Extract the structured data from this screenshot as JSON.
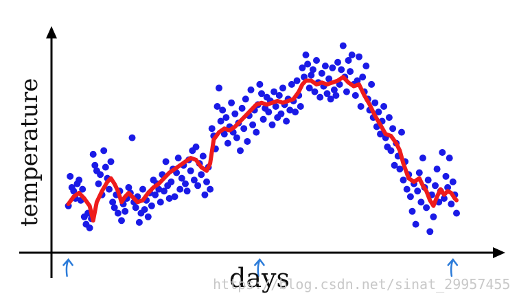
{
  "chart_data": {
    "type": "scatter",
    "xlabel": "days",
    "ylabel": "temperature",
    "xlim": [
      0,
      220
    ],
    "ylim": [
      0,
      100
    ],
    "grid": false,
    "series": [
      {
        "style": "scatter",
        "color": "#1a1ae6",
        "points": [
          [
            1,
            18
          ],
          [
            2,
            34
          ],
          [
            3,
            28
          ],
          [
            4,
            26
          ],
          [
            5,
            22
          ],
          [
            6,
            30
          ],
          [
            7,
            32
          ],
          [
            8,
            21
          ],
          [
            9,
            27
          ],
          [
            10,
            12
          ],
          [
            11,
            8
          ],
          [
            12,
            14
          ],
          [
            13,
            6
          ],
          [
            14,
            11
          ],
          [
            15,
            46
          ],
          [
            16,
            40
          ],
          [
            17,
            37
          ],
          [
            18,
            30
          ],
          [
            19,
            35
          ],
          [
            20,
            24
          ],
          [
            21,
            48
          ],
          [
            22,
            39
          ],
          [
            23,
            33
          ],
          [
            24,
            27
          ],
          [
            25,
            42
          ],
          [
            26,
            20
          ],
          [
            27,
            17
          ],
          [
            28,
            24
          ],
          [
            29,
            14
          ],
          [
            30,
            26
          ],
          [
            31,
            10
          ],
          [
            32,
            19
          ],
          [
            33,
            15
          ],
          [
            34,
            22
          ],
          [
            35,
            28
          ],
          [
            36,
            25
          ],
          [
            37,
            55
          ],
          [
            38,
            20
          ],
          [
            39,
            17
          ],
          [
            40,
            23
          ],
          [
            41,
            9
          ],
          [
            42,
            14
          ],
          [
            43,
            27
          ],
          [
            44,
            16
          ],
          [
            45,
            21
          ],
          [
            46,
            12
          ],
          [
            47,
            25
          ],
          [
            48,
            18
          ],
          [
            49,
            32
          ],
          [
            50,
            24
          ],
          [
            51,
            30
          ],
          [
            52,
            27
          ],
          [
            53,
            20
          ],
          [
            54,
            35
          ],
          [
            55,
            26
          ],
          [
            56,
            42
          ],
          [
            57,
            29
          ],
          [
            58,
            22
          ],
          [
            59,
            31
          ],
          [
            60,
            38
          ],
          [
            61,
            23
          ],
          [
            62,
            36
          ],
          [
            63,
            44
          ],
          [
            64,
            27
          ],
          [
            65,
            33
          ],
          [
            66,
            40
          ],
          [
            67,
            30
          ],
          [
            68,
            26
          ],
          [
            69,
            43
          ],
          [
            70,
            37
          ],
          [
            71,
            48
          ],
          [
            72,
            32
          ],
          [
            73,
            50
          ],
          [
            74,
            29
          ],
          [
            75,
            41
          ],
          [
            76,
            35
          ],
          [
            77,
            45
          ],
          [
            78,
            24
          ],
          [
            79,
            31
          ],
          [
            80,
            39
          ],
          [
            81,
            27
          ],
          [
            82,
            60
          ],
          [
            83,
            56
          ],
          [
            84,
            49
          ],
          [
            85,
            72
          ],
          [
            86,
            82
          ],
          [
            87,
            64
          ],
          [
            88,
            70
          ],
          [
            89,
            57
          ],
          [
            90,
            66
          ],
          [
            91,
            52
          ],
          [
            92,
            61
          ],
          [
            93,
            74
          ],
          [
            94,
            58
          ],
          [
            95,
            68
          ],
          [
            96,
            55
          ],
          [
            97,
            63
          ],
          [
            98,
            48
          ],
          [
            99,
            71
          ],
          [
            100,
            60
          ],
          [
            101,
            76
          ],
          [
            102,
            53
          ],
          [
            103,
            67
          ],
          [
            104,
            81
          ],
          [
            105,
            62
          ],
          [
            106,
            70
          ],
          [
            107,
            58
          ],
          [
            108,
            73
          ],
          [
            109,
            84
          ],
          [
            110,
            79
          ],
          [
            111,
            65
          ],
          [
            112,
            71
          ],
          [
            113,
            77
          ],
          [
            114,
            69
          ],
          [
            115,
            75
          ],
          [
            116,
            62
          ],
          [
            117,
            80
          ],
          [
            118,
            72
          ],
          [
            119,
            66
          ],
          [
            120,
            78
          ],
          [
            121,
            68
          ],
          [
            122,
            82
          ],
          [
            123,
            73
          ],
          [
            124,
            64
          ],
          [
            125,
            76
          ],
          [
            126,
            70
          ],
          [
            127,
            84
          ],
          [
            128,
            75
          ],
          [
            129,
            69
          ],
          [
            130,
            86
          ],
          [
            131,
            78
          ],
          [
            132,
            72
          ],
          [
            133,
            93
          ],
          [
            134,
            88
          ],
          [
            135,
            100
          ],
          [
            136,
            95
          ],
          [
            137,
            82
          ],
          [
            138,
            89
          ],
          [
            139,
            92
          ],
          [
            140,
            80
          ],
          [
            141,
            97
          ],
          [
            142,
            85
          ],
          [
            143,
            77
          ],
          [
            144,
            90
          ],
          [
            145,
            83
          ],
          [
            146,
            94
          ],
          [
            147,
            79
          ],
          [
            148,
            87
          ],
          [
            149,
            76
          ],
          [
            150,
            93
          ],
          [
            151,
            81
          ],
          [
            152,
            78
          ],
          [
            153,
            96
          ],
          [
            154,
            84
          ],
          [
            155,
            92
          ],
          [
            156,
            105
          ],
          [
            157,
            88
          ],
          [
            158,
            80
          ],
          [
            159,
            97
          ],
          [
            160,
            91
          ],
          [
            161,
            100
          ],
          [
            162,
            84
          ],
          [
            163,
            78
          ],
          [
            164,
            86
          ],
          [
            165,
            99
          ],
          [
            166,
            72
          ],
          [
            167,
            88
          ],
          [
            168,
            80
          ],
          [
            169,
            94
          ],
          [
            170,
            76
          ],
          [
            171,
            70
          ],
          [
            172,
            84
          ],
          [
            173,
            66
          ],
          [
            174,
            74
          ],
          [
            175,
            61
          ],
          [
            176,
            69
          ],
          [
            177,
            57
          ],
          [
            178,
            64
          ],
          [
            179,
            72
          ],
          [
            180,
            55
          ],
          [
            181,
            50
          ],
          [
            182,
            66
          ],
          [
            183,
            48
          ],
          [
            184,
            60
          ],
          [
            185,
            40
          ],
          [
            186,
            52
          ],
          [
            187,
            45
          ],
          [
            188,
            38
          ],
          [
            189,
            58
          ],
          [
            190,
            32
          ],
          [
            191,
            42
          ],
          [
            192,
            27
          ],
          [
            193,
            35
          ],
          [
            194,
            23
          ],
          [
            195,
            15
          ],
          [
            196,
            30
          ],
          [
            197,
            8
          ],
          [
            198,
            26
          ],
          [
            199,
            36
          ],
          [
            200,
            20
          ],
          [
            201,
            44
          ],
          [
            202,
            28
          ],
          [
            203,
            17
          ],
          [
            204,
            32
          ],
          [
            205,
            4
          ],
          [
            206,
            24
          ],
          [
            207,
            12
          ],
          [
            208,
            29
          ],
          [
            209,
            38
          ],
          [
            210,
            20
          ],
          [
            211,
            26
          ],
          [
            212,
            47
          ],
          [
            213,
            22
          ],
          [
            214,
            34
          ],
          [
            215,
            28
          ],
          [
            216,
            44
          ],
          [
            217,
            19
          ],
          [
            218,
            31
          ],
          [
            219,
            24
          ],
          [
            220,
            14
          ]
        ]
      },
      {
        "style": "line",
        "color": "#ee1c1c",
        "points": [
          [
            1,
            19
          ],
          [
            4,
            23
          ],
          [
            7,
            25
          ],
          [
            10,
            22
          ],
          [
            13,
            18
          ],
          [
            15,
            10
          ],
          [
            17,
            20
          ],
          [
            20,
            26
          ],
          [
            23,
            31
          ],
          [
            25,
            33
          ],
          [
            27,
            30
          ],
          [
            29,
            26
          ],
          [
            31,
            20
          ],
          [
            33,
            23
          ],
          [
            35,
            25
          ],
          [
            38,
            22
          ],
          [
            40,
            20
          ],
          [
            43,
            21
          ],
          [
            46,
            25
          ],
          [
            49,
            28
          ],
          [
            52,
            30
          ],
          [
            55,
            33
          ],
          [
            58,
            36
          ],
          [
            61,
            38
          ],
          [
            64,
            40
          ],
          [
            67,
            42
          ],
          [
            70,
            44
          ],
          [
            73,
            43
          ],
          [
            76,
            39
          ],
          [
            79,
            37
          ],
          [
            81,
            41
          ],
          [
            83,
            54
          ],
          [
            86,
            58
          ],
          [
            89,
            60
          ],
          [
            92,
            59
          ],
          [
            95,
            61
          ],
          [
            98,
            64
          ],
          [
            101,
            67
          ],
          [
            104,
            70
          ],
          [
            107,
            73
          ],
          [
            110,
            74
          ],
          [
            113,
            73
          ],
          [
            116,
            74
          ],
          [
            119,
            75
          ],
          [
            122,
            74
          ],
          [
            125,
            75
          ],
          [
            128,
            76
          ],
          [
            131,
            80
          ],
          [
            133,
            84
          ],
          [
            135,
            86
          ],
          [
            138,
            86
          ],
          [
            141,
            84
          ],
          [
            144,
            85
          ],
          [
            147,
            84
          ],
          [
            150,
            85
          ],
          [
            153,
            86
          ],
          [
            156,
            88
          ],
          [
            159,
            85
          ],
          [
            162,
            83
          ],
          [
            165,
            84
          ],
          [
            168,
            78
          ],
          [
            171,
            73
          ],
          [
            174,
            67
          ],
          [
            177,
            62
          ],
          [
            180,
            57
          ],
          [
            183,
            56
          ],
          [
            186,
            52
          ],
          [
            188,
            48
          ],
          [
            190,
            41
          ],
          [
            193,
            33
          ],
          [
            196,
            31
          ],
          [
            199,
            33
          ],
          [
            201,
            29
          ],
          [
            203,
            26
          ],
          [
            205,
            21
          ],
          [
            207,
            18
          ],
          [
            209,
            23
          ],
          [
            211,
            27
          ],
          [
            213,
            24
          ],
          [
            215,
            26
          ],
          [
            217,
            25
          ],
          [
            219,
            22
          ],
          [
            220,
            21
          ]
        ]
      }
    ],
    "annotations": [
      {
        "type": "arrow-marker",
        "x": 1
      },
      {
        "type": "arrow-marker",
        "x": 109
      },
      {
        "type": "arrow-marker",
        "x": 218
      }
    ]
  },
  "watermark": {
    "text": "https://blog.csdn.net/sinat_29957455"
  }
}
